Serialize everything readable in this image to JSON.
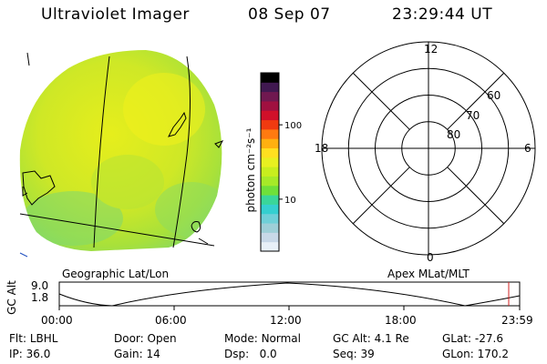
{
  "header": {
    "instrument": "Ultraviolet Imager",
    "date": "08 Sep 07",
    "time": "23:29:44 UT"
  },
  "colorbar": {
    "unit_label": "photon cm⁻²s⁻¹",
    "ticks": [
      {
        "label": "100",
        "value": 100
      },
      {
        "label": "10",
        "value": 10
      }
    ],
    "colors": [
      "#e8f0f8",
      "#c8d8e8",
      "#9ecfd8",
      "#6fd0d8",
      "#35d0d0",
      "#3ad69a",
      "#6fe03a",
      "#a6ea28",
      "#c8ee1e",
      "#e8f020",
      "#ffe020",
      "#ffb010",
      "#ff7a10",
      "#f03a10",
      "#d0102a",
      "#a01040",
      "#701850",
      "#401850",
      "#000000"
    ]
  },
  "left_panel": {
    "label": "Geographic Lat/Lon"
  },
  "right_panel": {
    "label": "Apex MLat/MLT",
    "mlt_labels": {
      "top": "12",
      "left": "18",
      "right": "6",
      "bottom": "0"
    },
    "lat_labels": [
      "60",
      "70",
      "80"
    ]
  },
  "altitude_plot": {
    "ylabel": "GC Alt",
    "yticks": [
      "9.0",
      "1.8"
    ],
    "xticks": [
      "00:00",
      "06:00",
      "12:00",
      "18:00",
      "23:59"
    ],
    "marker_color": "#d02020"
  },
  "footer": {
    "row1": [
      {
        "key": "Flt:",
        "value": "LBHL"
      },
      {
        "key": "Door:",
        "value": "Open"
      },
      {
        "key": "Mode:",
        "value": "Normal"
      },
      {
        "key": "GC Alt:",
        "value": "4.1 Re"
      },
      {
        "key": "GLat:",
        "value": "-27.6"
      }
    ],
    "row2": [
      {
        "key": "IP:",
        "value": "36.0"
      },
      {
        "key": "Gain:",
        "value": "14"
      },
      {
        "key": "Dsp:",
        "value": "0.0"
      },
      {
        "key": "Seq:",
        "value": "39"
      },
      {
        "key": "GLon:",
        "value": "170.2"
      }
    ]
  }
}
